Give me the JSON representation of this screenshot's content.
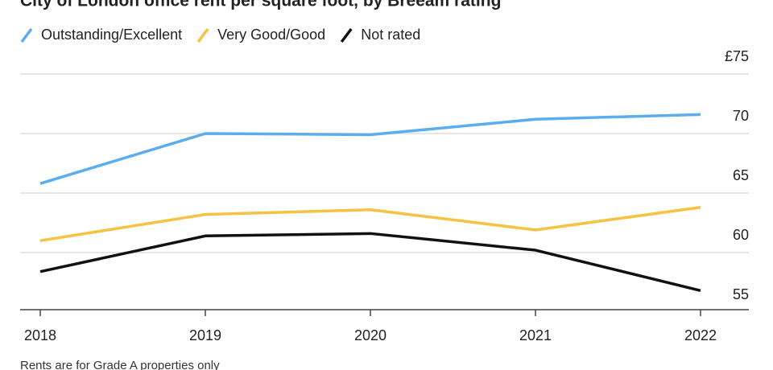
{
  "chart_data": {
    "type": "line",
    "title": "City of London office rent per square foot, by Breeam rating",
    "footnote": "Rents are for Grade A properties only",
    "categories": [
      "2018",
      "2019",
      "2020",
      "2021",
      "2022"
    ],
    "series": [
      {
        "name": "Outstanding/Excellent",
        "color": "#5aaef0",
        "values": [
          65.8,
          70.0,
          69.9,
          71.2,
          71.6
        ]
      },
      {
        "name": "Very Good/Good",
        "color": "#f5c242",
        "values": [
          61.0,
          63.2,
          63.6,
          61.9,
          63.8
        ]
      },
      {
        "name": "Not rated",
        "color": "#111111",
        "values": [
          58.4,
          61.4,
          61.6,
          60.2,
          56.8
        ]
      }
    ],
    "ylim": [
      55,
      75
    ],
    "yticks": [
      55,
      60,
      65,
      70,
      {
        "value": 75,
        "label": "£75"
      }
    ],
    "grid": true
  }
}
